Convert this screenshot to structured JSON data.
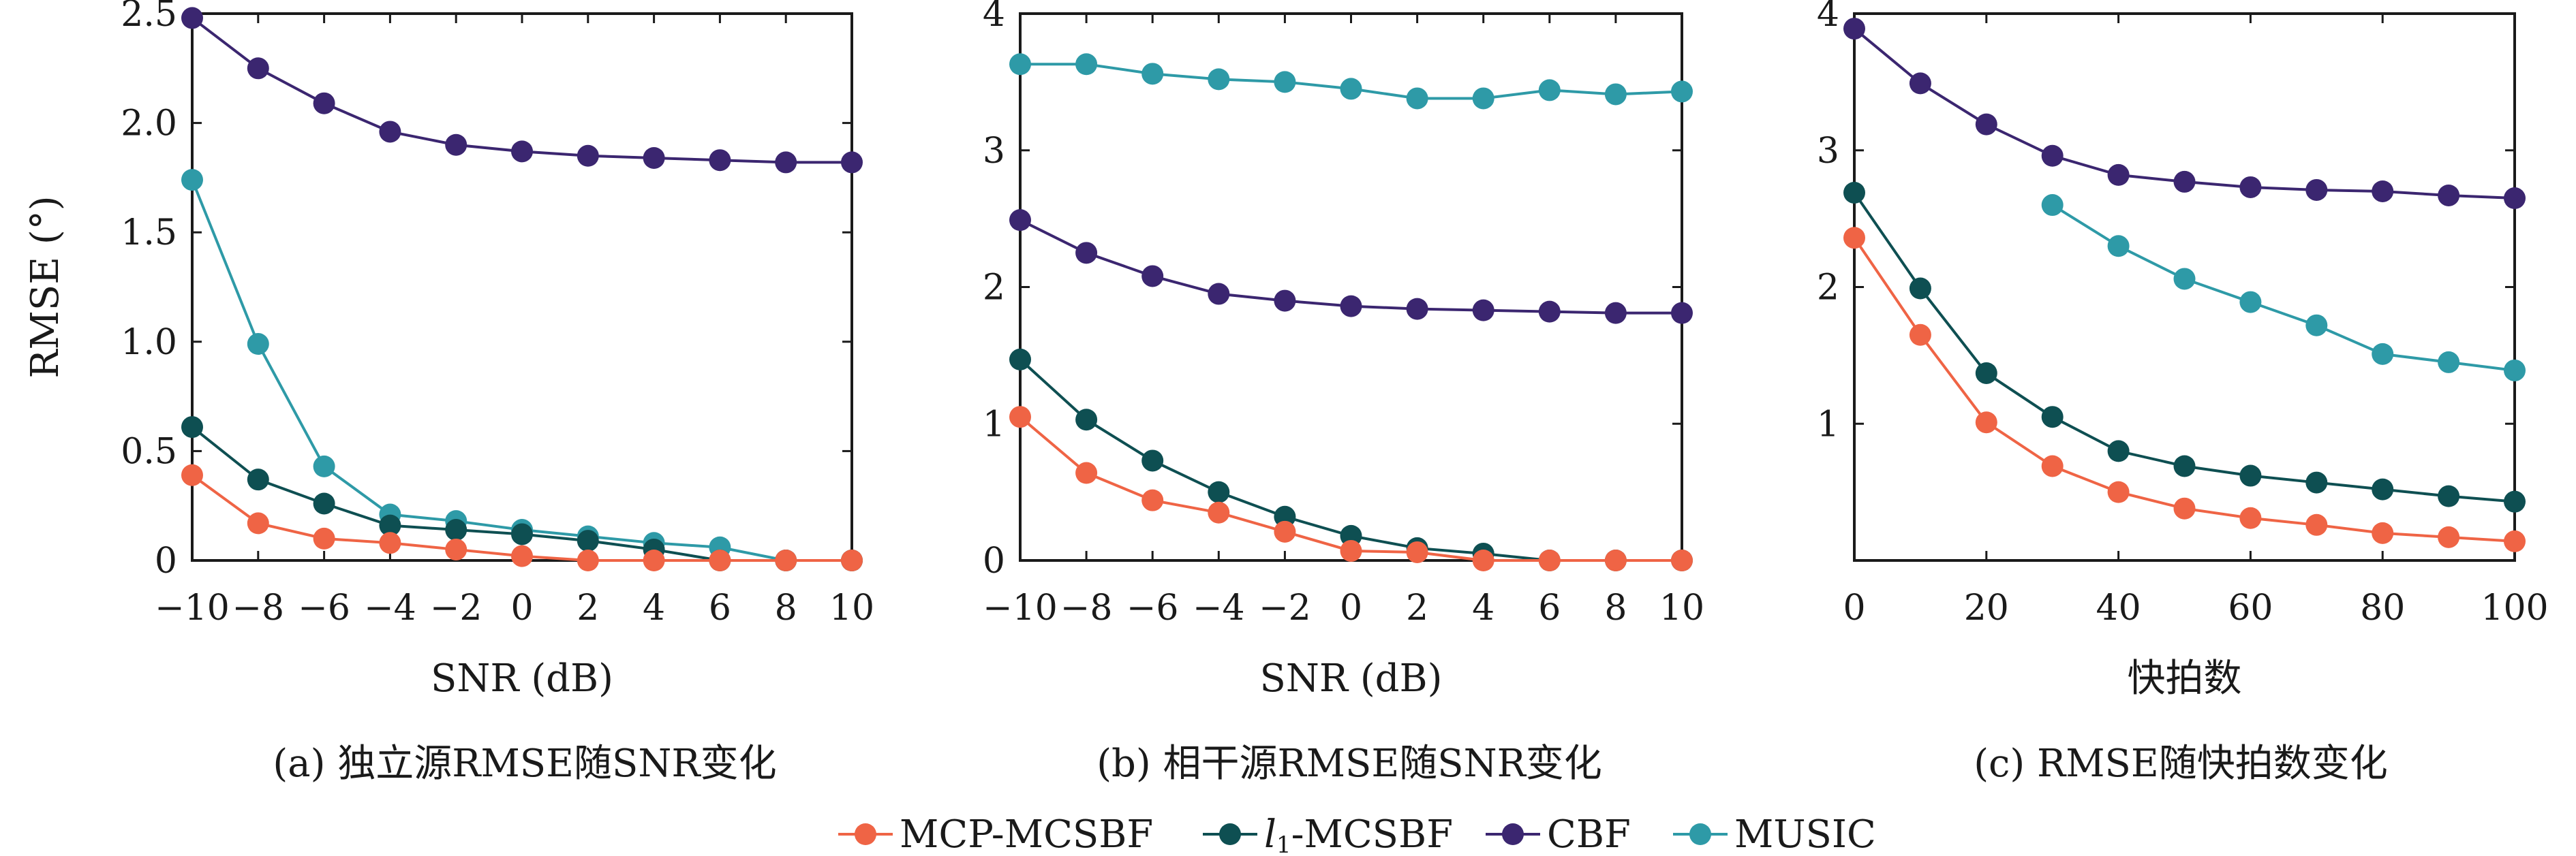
{
  "colors": {
    "MCP-MCSBF": "#ef6445",
    "l1-MCSBF": "#0e4f52",
    "CBF": "#3b2670",
    "MUSIC": "#2e9aa7",
    "axis": "#1a1a1a"
  },
  "legend": {
    "entries": [
      {
        "key": "MCP-MCSBF",
        "label": "MCP-MCSBF"
      },
      {
        "key": "l1-MCSBF",
        "label_italic": "l",
        "label_sub": "1",
        "label_rest": "-MCSBF"
      },
      {
        "key": "CBF",
        "label": "CBF"
      },
      {
        "key": "MUSIC",
        "label": "MUSIC"
      }
    ]
  },
  "chart_data": [
    {
      "type": "line",
      "caption": "(a) 独立源RMSE随SNR变化",
      "xlabel": "SNR (dB)",
      "ylabel": "RMSE (°)",
      "xlim": [
        -10,
        10
      ],
      "ylim": [
        0,
        2.5
      ],
      "xticks": [
        -10,
        -8,
        -6,
        -4,
        -2,
        0,
        2,
        4,
        6,
        8,
        10
      ],
      "xtick_labels": [
        "−10",
        "−8",
        "−6",
        "−4",
        "−2",
        "0",
        "2",
        "4",
        "6",
        "8",
        "10"
      ],
      "yticks": [
        0,
        0.5,
        1.0,
        1.5,
        2.0,
        2.5
      ],
      "ytick_labels": [
        "0",
        "0.5",
        "1.0",
        "1.5",
        "2.0",
        "2.5"
      ],
      "x": [
        -10,
        -8,
        -6,
        -4,
        -2,
        0,
        2,
        4,
        6,
        8,
        10
      ],
      "series": [
        {
          "key": "CBF",
          "values": [
            2.48,
            2.25,
            2.09,
            1.96,
            1.9,
            1.87,
            1.85,
            1.84,
            1.83,
            1.82,
            1.82
          ]
        },
        {
          "key": "MUSIC",
          "values": [
            1.74,
            0.99,
            0.43,
            0.21,
            0.18,
            0.14,
            0.11,
            0.08,
            0.06,
            0.0,
            0.0
          ]
        },
        {
          "key": "l1-MCSBF",
          "values": [
            0.61,
            0.37,
            0.26,
            0.16,
            0.14,
            0.12,
            0.09,
            0.05,
            0.0,
            0.0,
            0.0
          ]
        },
        {
          "key": "MCP-MCSBF",
          "values": [
            0.39,
            0.17,
            0.1,
            0.08,
            0.05,
            0.02,
            0.0,
            0.0,
            0.0,
            0.0,
            0.0
          ]
        }
      ]
    },
    {
      "type": "line",
      "caption": "(b) 相干源RMSE随SNR变化",
      "xlabel": "SNR (dB)",
      "ylabel": "",
      "xlim": [
        -10,
        10
      ],
      "ylim": [
        0,
        4
      ],
      "xticks": [
        -10,
        -8,
        -6,
        -4,
        -2,
        0,
        2,
        4,
        6,
        8,
        10
      ],
      "xtick_labels": [
        "−10",
        "−8",
        "−6",
        "−4",
        "−2",
        "0",
        "2",
        "4",
        "6",
        "8",
        "10"
      ],
      "yticks": [
        0,
        1,
        2,
        3,
        4
      ],
      "ytick_labels": [
        "0",
        "1",
        "2",
        "3",
        "4"
      ],
      "x": [
        -10,
        -8,
        -6,
        -4,
        -2,
        0,
        2,
        4,
        6,
        8,
        10
      ],
      "series": [
        {
          "key": "MUSIC",
          "values": [
            3.63,
            3.63,
            3.56,
            3.52,
            3.5,
            3.45,
            3.38,
            3.38,
            3.44,
            3.41,
            3.43
          ]
        },
        {
          "key": "CBF",
          "values": [
            2.49,
            2.25,
            2.08,
            1.95,
            1.9,
            1.86,
            1.84,
            1.83,
            1.82,
            1.81,
            1.81
          ]
        },
        {
          "key": "l1-MCSBF",
          "values": [
            1.47,
            1.03,
            0.73,
            0.5,
            0.32,
            0.18,
            0.09,
            0.05,
            0.0,
            0.0,
            0.0
          ]
        },
        {
          "key": "MCP-MCSBF",
          "values": [
            1.05,
            0.64,
            0.44,
            0.35,
            0.21,
            0.07,
            0.06,
            0.0,
            0.0,
            0.0,
            0.0
          ]
        }
      ]
    },
    {
      "type": "line",
      "caption": "(c) RMSE随快拍数变化",
      "xlabel": "快拍数",
      "ylabel": "",
      "xlim": [
        0,
        100
      ],
      "ylim": [
        0,
        4
      ],
      "xticks": [
        0,
        20,
        40,
        60,
        80,
        100
      ],
      "xtick_labels": [
        "0",
        "20",
        "40",
        "60",
        "80",
        "100"
      ],
      "yticks": [
        1,
        2,
        3,
        4
      ],
      "ytick_labels": [
        "1",
        "2",
        "3",
        "4"
      ],
      "series": [
        {
          "key": "CBF",
          "x": [
            0,
            10,
            20,
            30,
            40,
            50,
            60,
            70,
            80,
            90,
            100
          ],
          "values": [
            3.89,
            3.49,
            3.19,
            2.96,
            2.82,
            2.77,
            2.73,
            2.71,
            2.7,
            2.67,
            2.65
          ]
        },
        {
          "key": "MUSIC",
          "x": [
            30,
            40,
            50,
            60,
            70,
            80,
            90,
            100
          ],
          "values": [
            2.6,
            2.3,
            2.06,
            1.89,
            1.72,
            1.51,
            1.45,
            1.39
          ]
        },
        {
          "key": "l1-MCSBF",
          "x": [
            0,
            10,
            20,
            30,
            40,
            50,
            60,
            70,
            80,
            90,
            100
          ],
          "values": [
            2.69,
            1.99,
            1.37,
            1.05,
            0.8,
            0.69,
            0.62,
            0.57,
            0.52,
            0.47,
            0.43
          ]
        },
        {
          "key": "MCP-MCSBF",
          "x": [
            0,
            10,
            20,
            30,
            40,
            50,
            60,
            70,
            80,
            90,
            100
          ],
          "values": [
            2.36,
            1.65,
            1.01,
            0.69,
            0.5,
            0.38,
            0.31,
            0.26,
            0.2,
            0.17,
            0.14
          ]
        }
      ]
    }
  ]
}
